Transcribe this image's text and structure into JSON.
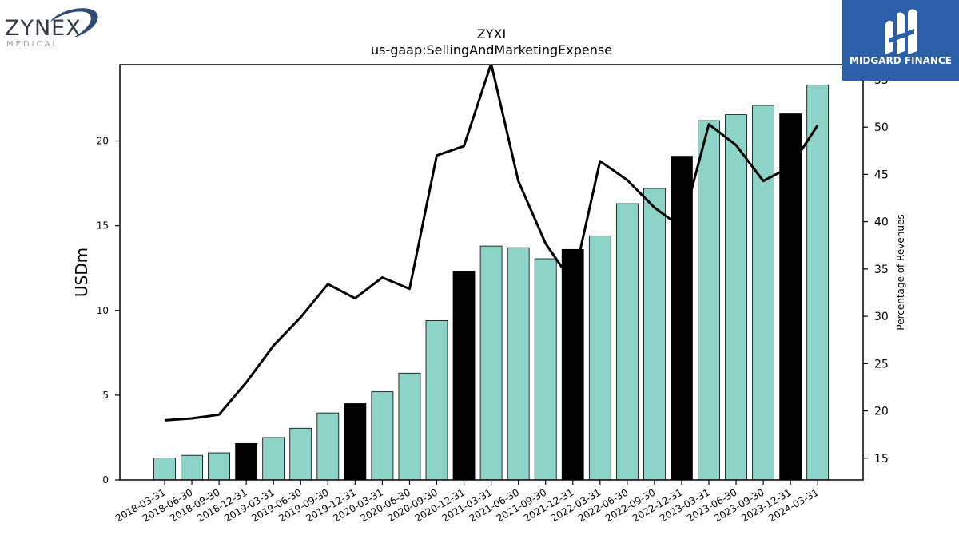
{
  "chart_data": {
    "type": "bar",
    "title": "ZYXI",
    "subtitle": "us-gaap:SellingAndMarketingExpense",
    "ylabel": "USDm",
    "y2label": "Percentage of Revenues",
    "ylim": [
      0,
      24.5
    ],
    "y2lim": [
      12.7,
      56.6
    ],
    "yticks": [
      0,
      5,
      10,
      15,
      20
    ],
    "y2ticks": [
      15,
      20,
      25,
      30,
      35,
      40,
      45,
      50,
      55
    ],
    "categories": [
      "2018-03-31",
      "2018-06-30",
      "2018-09-30",
      "2018-12-31",
      "2019-03-31",
      "2019-06-30",
      "2019-09-30",
      "2019-12-31",
      "2020-03-31",
      "2020-06-30",
      "2020-09-30",
      "2020-12-31",
      "2021-03-31",
      "2021-06-30",
      "2021-09-30",
      "2021-12-31",
      "2022-03-31",
      "2022-06-30",
      "2022-09-30",
      "2022-12-31",
      "2023-03-31",
      "2023-06-30",
      "2023-09-30",
      "2023-12-31",
      "2024-03-31"
    ],
    "series": [
      {
        "kind": "bar",
        "values": [
          1.3,
          1.45,
          1.6,
          2.15,
          2.5,
          3.05,
          3.95,
          4.5,
          5.2,
          6.3,
          9.4,
          12.3,
          13.8,
          13.7,
          13.05,
          13.6,
          14.4,
          16.3,
          17.2,
          19.1,
          21.2,
          21.55,
          22.1,
          21.6,
          23.3
        ],
        "annual": [
          false,
          false,
          false,
          true,
          false,
          false,
          false,
          true,
          false,
          false,
          false,
          true,
          false,
          false,
          false,
          true,
          false,
          false,
          false,
          true,
          false,
          false,
          false,
          true,
          false
        ]
      },
      {
        "kind": "line",
        "axis": "right",
        "values": [
          19.0,
          19.2,
          19.6,
          23.0,
          26.9,
          29.9,
          33.4,
          31.9,
          34.1,
          32.9,
          47.0,
          48.0,
          56.7,
          44.3,
          37.7,
          33.5,
          46.4,
          44.4,
          41.5,
          39.4,
          50.3,
          48.1,
          44.3,
          45.8,
          50.2
        ]
      }
    ],
    "colors": {
      "bar": "#8dd3c7",
      "bar_annual": "#000000",
      "line": "#000000",
      "edge": "#000000"
    },
    "grid": false
  },
  "logos": {
    "left": {
      "name": "ZYNEX",
      "sub": "MEDICAL"
    },
    "right": {
      "name": "MIDGARD FINANCE",
      "background": "#2b5fa8"
    }
  }
}
